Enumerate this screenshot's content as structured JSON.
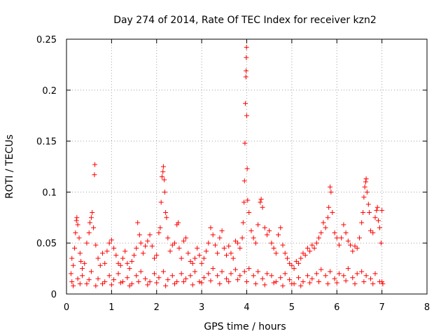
{
  "chart_data": {
    "type": "scatter",
    "title": "Day 274 of 2014, Rate Of TEC Index for receiver kzn2",
    "xlabel": "GPS time / hours",
    "ylabel": "ROTI / TECUs",
    "xlim": [
      0,
      8
    ],
    "ylim": [
      0,
      0.25
    ],
    "x_ticks": [
      0,
      1,
      2,
      3,
      4,
      5,
      6,
      7,
      8
    ],
    "x_tick_labels": [
      "0",
      "1",
      "2",
      "3",
      "4",
      "5",
      "6",
      "7",
      "8"
    ],
    "y_ticks": [
      0,
      0.05,
      0.1,
      0.15,
      0.2,
      0.25
    ],
    "y_tick_labels": [
      "0",
      "0.05",
      "0.1",
      "0.15",
      "0.2",
      "0.25"
    ],
    "grid": true,
    "marker": "+",
    "marker_color": "#ff0000",
    "series": [
      {
        "name": "ROTI",
        "points": [
          [
            0.1,
            0.02
          ],
          [
            0.12,
            0.035
          ],
          [
            0.15,
            0.028
          ],
          [
            0.18,
            0.045
          ],
          [
            0.2,
            0.06
          ],
          [
            0.22,
            0.072
          ],
          [
            0.23,
            0.075
          ],
          [
            0.25,
            0.068
          ],
          [
            0.28,
            0.055
          ],
          [
            0.3,
            0.04
          ],
          [
            0.32,
            0.032
          ],
          [
            0.35,
            0.025
          ],
          [
            0.4,
            0.03
          ],
          [
            0.45,
            0.05
          ],
          [
            0.5,
            0.06
          ],
          [
            0.52,
            0.07
          ],
          [
            0.55,
            0.075
          ],
          [
            0.57,
            0.08
          ],
          [
            0.6,
            0.065
          ],
          [
            0.62,
            0.117
          ],
          [
            0.63,
            0.127
          ],
          [
            0.65,
            0.048
          ],
          [
            0.7,
            0.035
          ],
          [
            0.75,
            0.028
          ],
          [
            0.8,
            0.04
          ],
          [
            0.85,
            0.03
          ],
          [
            0.9,
            0.042
          ],
          [
            0.95,
            0.05
          ],
          [
            1.0,
            0.053
          ],
          [
            1.05,
            0.045
          ],
          [
            1.1,
            0.038
          ],
          [
            1.15,
            0.03
          ],
          [
            1.2,
            0.028
          ],
          [
            1.25,
            0.035
          ],
          [
            1.3,
            0.042
          ],
          [
            1.35,
            0.03
          ],
          [
            1.4,
            0.025
          ],
          [
            1.45,
            0.032
          ],
          [
            1.5,
            0.038
          ],
          [
            1.55,
            0.045
          ],
          [
            1.58,
            0.07
          ],
          [
            1.62,
            0.058
          ],
          [
            1.65,
            0.05
          ],
          [
            1.7,
            0.04
          ],
          [
            1.75,
            0.047
          ],
          [
            1.8,
            0.052
          ],
          [
            1.85,
            0.058
          ],
          [
            1.9,
            0.047
          ],
          [
            1.95,
            0.035
          ],
          [
            2.0,
            0.038
          ],
          [
            2.05,
            0.06
          ],
          [
            2.08,
            0.065
          ],
          [
            2.1,
            0.09
          ],
          [
            2.12,
            0.115
          ],
          [
            2.14,
            0.12
          ],
          [
            2.15,
            0.125
          ],
          [
            2.17,
            0.112
          ],
          [
            2.18,
            0.1
          ],
          [
            2.2,
            0.08
          ],
          [
            2.22,
            0.075
          ],
          [
            2.25,
            0.055
          ],
          [
            2.3,
            0.042
          ],
          [
            2.35,
            0.048
          ],
          [
            2.4,
            0.05
          ],
          [
            2.45,
            0.068
          ],
          [
            2.48,
            0.07
          ],
          [
            2.5,
            0.045
          ],
          [
            2.55,
            0.035
          ],
          [
            2.6,
            0.052
          ],
          [
            2.65,
            0.055
          ],
          [
            2.7,
            0.04
          ],
          [
            2.75,
            0.032
          ],
          [
            2.8,
            0.03
          ],
          [
            2.85,
            0.035
          ],
          [
            2.9,
            0.045
          ],
          [
            2.95,
            0.038
          ],
          [
            3.0,
            0.03
          ],
          [
            3.05,
            0.035
          ],
          [
            3.1,
            0.042
          ],
          [
            3.15,
            0.05
          ],
          [
            3.2,
            0.065
          ],
          [
            3.25,
            0.058
          ],
          [
            3.3,
            0.048
          ],
          [
            3.35,
            0.04
          ],
          [
            3.4,
            0.055
          ],
          [
            3.45,
            0.062
          ],
          [
            3.5,
            0.045
          ],
          [
            3.55,
            0.038
          ],
          [
            3.6,
            0.047
          ],
          [
            3.65,
            0.04
          ],
          [
            3.7,
            0.035
          ],
          [
            3.75,
            0.052
          ],
          [
            3.8,
            0.05
          ],
          [
            3.85,
            0.045
          ],
          [
            3.9,
            0.055
          ],
          [
            3.92,
            0.07
          ],
          [
            3.94,
            0.09
          ],
          [
            3.95,
            0.111
          ],
          [
            3.96,
            0.148
          ],
          [
            3.97,
            0.187
          ],
          [
            3.98,
            0.213
          ],
          [
            3.985,
            0.219
          ],
          [
            3.99,
            0.232
          ],
          [
            3.995,
            0.242
          ],
          [
            4.0,
            0.175
          ],
          [
            4.01,
            0.123
          ],
          [
            4.02,
            0.092
          ],
          [
            4.05,
            0.08
          ],
          [
            4.1,
            0.062
          ],
          [
            4.15,
            0.055
          ],
          [
            4.2,
            0.05
          ],
          [
            4.25,
            0.068
          ],
          [
            4.3,
            0.09
          ],
          [
            4.32,
            0.093
          ],
          [
            4.35,
            0.085
          ],
          [
            4.4,
            0.065
          ],
          [
            4.45,
            0.058
          ],
          [
            4.5,
            0.062
          ],
          [
            4.55,
            0.05
          ],
          [
            4.6,
            0.045
          ],
          [
            4.65,
            0.04
          ],
          [
            4.7,
            0.058
          ],
          [
            4.75,
            0.065
          ],
          [
            4.8,
            0.048
          ],
          [
            4.85,
            0.04
          ],
          [
            4.9,
            0.035
          ],
          [
            4.95,
            0.03
          ],
          [
            5.0,
            0.028
          ],
          [
            5.05,
            0.025
          ],
          [
            5.1,
            0.032
          ],
          [
            5.15,
            0.03
          ],
          [
            5.2,
            0.035
          ],
          [
            5.25,
            0.04
          ],
          [
            5.3,
            0.038
          ],
          [
            5.35,
            0.045
          ],
          [
            5.4,
            0.042
          ],
          [
            5.45,
            0.048
          ],
          [
            5.5,
            0.045
          ],
          [
            5.55,
            0.05
          ],
          [
            5.6,
            0.055
          ],
          [
            5.65,
            0.06
          ],
          [
            5.7,
            0.07
          ],
          [
            5.75,
            0.065
          ],
          [
            5.8,
            0.075
          ],
          [
            5.82,
            0.085
          ],
          [
            5.85,
            0.105
          ],
          [
            5.87,
            0.1
          ],
          [
            5.9,
            0.08
          ],
          [
            5.95,
            0.06
          ],
          [
            6.0,
            0.055
          ],
          [
            6.05,
            0.048
          ],
          [
            6.1,
            0.055
          ],
          [
            6.15,
            0.068
          ],
          [
            6.2,
            0.06
          ],
          [
            6.25,
            0.052
          ],
          [
            6.3,
            0.048
          ],
          [
            6.35,
            0.042
          ],
          [
            6.4,
            0.047
          ],
          [
            6.45,
            0.045
          ],
          [
            6.5,
            0.055
          ],
          [
            6.55,
            0.07
          ],
          [
            6.58,
            0.08
          ],
          [
            6.6,
            0.095
          ],
          [
            6.62,
            0.105
          ],
          [
            6.64,
            0.11
          ],
          [
            6.65,
            0.113
          ],
          [
            6.67,
            0.1
          ],
          [
            6.7,
            0.088
          ],
          [
            6.72,
            0.08
          ],
          [
            6.75,
            0.062
          ],
          [
            6.8,
            0.06
          ],
          [
            6.85,
            0.075
          ],
          [
            6.88,
            0.082
          ],
          [
            6.9,
            0.085
          ],
          [
            6.92,
            0.072
          ],
          [
            6.95,
            0.065
          ],
          [
            6.98,
            0.05
          ],
          [
            7.0,
            0.082
          ],
          [
            7.02,
            0.01
          ],
          [
            0.12,
            0.012
          ],
          [
            0.25,
            0.015
          ],
          [
            0.35,
            0.018
          ],
          [
            0.45,
            0.01
          ],
          [
            0.55,
            0.022
          ],
          [
            0.7,
            0.015
          ],
          [
            0.85,
            0.012
          ],
          [
            0.95,
            0.018
          ],
          [
            1.05,
            0.014
          ],
          [
            1.15,
            0.02
          ],
          [
            1.25,
            0.012
          ],
          [
            1.35,
            0.016
          ],
          [
            1.45,
            0.01
          ],
          [
            1.55,
            0.018
          ],
          [
            1.65,
            0.022
          ],
          [
            1.75,
            0.015
          ],
          [
            1.85,
            0.012
          ],
          [
            1.95,
            0.02
          ],
          [
            2.05,
            0.016
          ],
          [
            2.15,
            0.022
          ],
          [
            2.25,
            0.014
          ],
          [
            2.35,
            0.018
          ],
          [
            2.45,
            0.012
          ],
          [
            2.55,
            0.02
          ],
          [
            2.65,
            0.015
          ],
          [
            2.75,
            0.018
          ],
          [
            2.85,
            0.022
          ],
          [
            2.95,
            0.012
          ],
          [
            3.05,
            0.016
          ],
          [
            3.15,
            0.02
          ],
          [
            3.25,
            0.025
          ],
          [
            3.35,
            0.018
          ],
          [
            3.45,
            0.022
          ],
          [
            3.55,
            0.015
          ],
          [
            3.65,
            0.02
          ],
          [
            3.75,
            0.024
          ],
          [
            3.85,
            0.018
          ],
          [
            3.95,
            0.022
          ],
          [
            4.05,
            0.025
          ],
          [
            4.15,
            0.018
          ],
          [
            4.25,
            0.022
          ],
          [
            4.35,
            0.015
          ],
          [
            4.45,
            0.02
          ],
          [
            4.55,
            0.018
          ],
          [
            4.65,
            0.012
          ],
          [
            4.75,
            0.016
          ],
          [
            4.85,
            0.02
          ],
          [
            4.95,
            0.014
          ],
          [
            5.05,
            0.01
          ],
          [
            5.15,
            0.016
          ],
          [
            5.25,
            0.012
          ],
          [
            5.35,
            0.018
          ],
          [
            5.45,
            0.015
          ],
          [
            5.55,
            0.02
          ],
          [
            5.65,
            0.024
          ],
          [
            5.75,
            0.018
          ],
          [
            5.85,
            0.022
          ],
          [
            5.95,
            0.015
          ],
          [
            6.05,
            0.02
          ],
          [
            6.15,
            0.018
          ],
          [
            6.25,
            0.025
          ],
          [
            6.35,
            0.016
          ],
          [
            6.45,
            0.02
          ],
          [
            6.55,
            0.022
          ],
          [
            6.65,
            0.018
          ],
          [
            6.75,
            0.015
          ],
          [
            6.85,
            0.02
          ],
          [
            6.95,
            0.012
          ],
          [
            0.15,
            0.008
          ],
          [
            0.3,
            0.01
          ],
          [
            0.5,
            0.014
          ],
          [
            0.65,
            0.008
          ],
          [
            0.8,
            0.01
          ],
          [
            1.0,
            0.009
          ],
          [
            1.2,
            0.011
          ],
          [
            1.4,
            0.008
          ],
          [
            1.6,
            0.012
          ],
          [
            1.8,
            0.009
          ],
          [
            2.0,
            0.011
          ],
          [
            2.2,
            0.008
          ],
          [
            2.4,
            0.01
          ],
          [
            2.6,
            0.012
          ],
          [
            2.8,
            0.009
          ],
          [
            3.0,
            0.011
          ],
          [
            3.2,
            0.013
          ],
          [
            3.4,
            0.01
          ],
          [
            3.6,
            0.012
          ],
          [
            3.8,
            0.014
          ],
          [
            4.0,
            0.012
          ],
          [
            4.2,
            0.01
          ],
          [
            4.4,
            0.009
          ],
          [
            4.6,
            0.011
          ],
          [
            4.8,
            0.008
          ],
          [
            5.0,
            0.01
          ],
          [
            5.2,
            0.008
          ],
          [
            5.4,
            0.011
          ],
          [
            5.6,
            0.012
          ],
          [
            5.8,
            0.01
          ],
          [
            6.0,
            0.011
          ],
          [
            6.2,
            0.013
          ],
          [
            6.4,
            0.01
          ],
          [
            6.6,
            0.012
          ],
          [
            6.8,
            0.01
          ],
          [
            7.0,
            0.012
          ]
        ]
      }
    ]
  }
}
